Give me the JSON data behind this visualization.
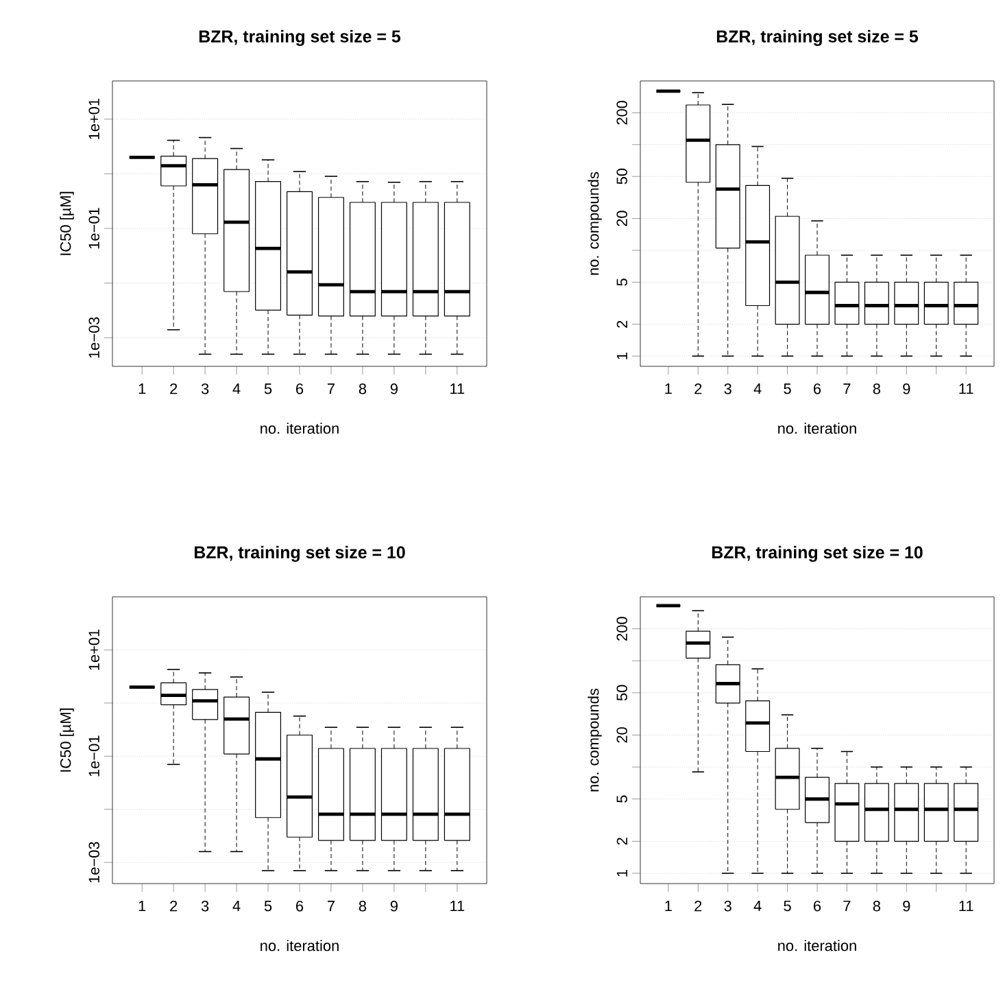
{
  "chart_data": [
    {
      "type": "box",
      "title": "BZR, training set size = 5",
      "xlabel": "no. iteration",
      "ylabel": "IC50 [µM]",
      "log": true,
      "grid": "y",
      "categories": [
        "1",
        "2",
        "3",
        "4",
        "5",
        "6",
        "7",
        "8",
        "9",
        null,
        "11"
      ],
      "ylim": [
        0.0003,
        50
      ],
      "yticks": [
        {
          "value": 0.001,
          "label": "1e−03"
        },
        {
          "value": 0.01,
          "label": null
        },
        {
          "value": 0.1,
          "label": "1e−01"
        },
        {
          "value": 1,
          "label": null
        },
        {
          "value": 10,
          "label": "1e+01"
        }
      ],
      "boxes": [
        {
          "low": 2,
          "q1": 2,
          "median": 2,
          "q3": 2,
          "high": 2
        },
        {
          "low": 0.0014,
          "q1": 0.6,
          "median": 1.4,
          "q3": 2.1,
          "high": 4.1
        },
        {
          "low": 0.0005,
          "q1": 0.08,
          "median": 0.63,
          "q3": 1.9,
          "high": 4.6
        },
        {
          "low": 0.0005,
          "q1": 0.007,
          "median": 0.13,
          "q3": 1.2,
          "high": 2.9
        },
        {
          "low": 0.0005,
          "q1": 0.0032,
          "median": 0.043,
          "q3": 0.72,
          "high": 1.8
        },
        {
          "low": 0.0005,
          "q1": 0.0026,
          "median": 0.016,
          "q3": 0.47,
          "high": 1.1
        },
        {
          "low": 0.0005,
          "q1": 0.0025,
          "median": 0.0093,
          "q3": 0.37,
          "high": 0.9
        },
        {
          "low": 0.0005,
          "q1": 0.0025,
          "median": 0.007,
          "q3": 0.3,
          "high": 0.72
        },
        {
          "low": 0.0005,
          "q1": 0.0025,
          "median": 0.007,
          "q3": 0.3,
          "high": 0.7
        },
        {
          "low": 0.0005,
          "q1": 0.0025,
          "median": 0.007,
          "q3": 0.3,
          "high": 0.72
        },
        {
          "low": 0.0005,
          "q1": 0.0025,
          "median": 0.007,
          "q3": 0.3,
          "high": 0.72
        }
      ]
    },
    {
      "type": "box",
      "title": "BZR, training set size = 5",
      "xlabel": "no. iteration",
      "ylabel": "no. compounds",
      "log": true,
      "grid": "y",
      "categories": [
        "1",
        "2",
        "3",
        "4",
        "5",
        "6",
        "7",
        "8",
        "9",
        null,
        "11"
      ],
      "ylim": [
        0.8,
        400
      ],
      "yticks": [
        1,
        2,
        5,
        {
          "value": 10,
          "label": null
        },
        20,
        50,
        {
          "value": 100,
          "label": null
        },
        200
      ],
      "boxes": [
        {
          "low": 320,
          "q1": 320,
          "median": 320,
          "q3": 320,
          "high": 320
        },
        {
          "low": 1,
          "q1": 44,
          "median": 110,
          "q3": 237,
          "high": 310
        },
        {
          "low": 1,
          "q1": 10.5,
          "median": 38,
          "q3": 100,
          "high": 240
        },
        {
          "low": 1,
          "q1": 3,
          "median": 12,
          "q3": 41,
          "high": 96
        },
        {
          "low": 1,
          "q1": 2,
          "median": 5,
          "q3": 21,
          "high": 48
        },
        {
          "low": 1,
          "q1": 2,
          "median": 4,
          "q3": 9,
          "high": 19
        },
        {
          "low": 1,
          "q1": 2,
          "median": 3,
          "q3": 5,
          "high": 9
        },
        {
          "low": 1,
          "q1": 2,
          "median": 3,
          "q3": 5,
          "high": 9
        },
        {
          "low": 1,
          "q1": 2,
          "median": 3,
          "q3": 5,
          "high": 9
        },
        {
          "low": 1,
          "q1": 2,
          "median": 3,
          "q3": 5,
          "high": 9
        },
        {
          "low": 1,
          "q1": 2,
          "median": 3,
          "q3": 5,
          "high": 9
        }
      ]
    },
    {
      "type": "box",
      "title": "BZR, training set size = 10",
      "xlabel": "no. iteration",
      "ylabel": "IC50 [µM]",
      "log": true,
      "grid": "y",
      "categories": [
        "1",
        "2",
        "3",
        "4",
        "5",
        "6",
        "7",
        "8",
        "9",
        null,
        "11"
      ],
      "ylim": [
        0.0004,
        100
      ],
      "yticks": [
        {
          "value": 0.001,
          "label": "1e−03"
        },
        {
          "value": 0.01,
          "label": null
        },
        {
          "value": 0.1,
          "label": "1e−01"
        },
        {
          "value": 1,
          "label": null
        },
        {
          "value": 10,
          "label": "1e+01"
        }
      ],
      "boxes": [
        {
          "low": 2,
          "q1": 2,
          "median": 2,
          "q3": 2,
          "high": 2
        },
        {
          "low": 0.07,
          "q1": 0.93,
          "median": 1.4,
          "q3": 2.4,
          "high": 4.3
        },
        {
          "low": 0.0016,
          "q1": 0.49,
          "median": 1.1,
          "q3": 1.8,
          "high": 3.7
        },
        {
          "low": 0.0016,
          "q1": 0.11,
          "median": 0.5,
          "q3": 1.3,
          "high": 3.1
        },
        {
          "low": 0.0007,
          "q1": 0.007,
          "median": 0.089,
          "q3": 0.67,
          "high": 1.6
        },
        {
          "low": 0.0007,
          "q1": 0.003,
          "median": 0.017,
          "q3": 0.25,
          "high": 0.57
        },
        {
          "low": 0.0007,
          "q1": 0.0026,
          "median": 0.0081,
          "q3": 0.14,
          "high": 0.35
        },
        {
          "low": 0.0007,
          "q1": 0.0026,
          "median": 0.0081,
          "q3": 0.14,
          "high": 0.35
        },
        {
          "low": 0.0007,
          "q1": 0.0026,
          "median": 0.0081,
          "q3": 0.14,
          "high": 0.35
        },
        {
          "low": 0.0007,
          "q1": 0.0026,
          "median": 0.0081,
          "q3": 0.14,
          "high": 0.35
        },
        {
          "low": 0.0007,
          "q1": 0.0026,
          "median": 0.0081,
          "q3": 0.14,
          "high": 0.35
        }
      ]
    },
    {
      "type": "box",
      "title": "BZR, training set size = 10",
      "xlabel": "no. iteration",
      "ylabel": "no. compounds",
      "log": true,
      "grid": "y",
      "categories": [
        "1",
        "2",
        "3",
        "4",
        "5",
        "6",
        "7",
        "8",
        "9",
        null,
        "11"
      ],
      "ylim": [
        0.8,
        400
      ],
      "yticks": [
        1,
        2,
        5,
        {
          "value": 10,
          "label": null
        },
        20,
        50,
        {
          "value": 100,
          "label": null
        },
        200
      ],
      "boxes": [
        {
          "low": 330,
          "q1": 330,
          "median": 330,
          "q3": 330,
          "high": 330
        },
        {
          "low": 9,
          "q1": 106,
          "median": 147,
          "q3": 190,
          "high": 296
        },
        {
          "low": 1,
          "q1": 40,
          "median": 61,
          "q3": 92,
          "high": 167
        },
        {
          "low": 1,
          "q1": 14,
          "median": 26,
          "q3": 42,
          "high": 84
        },
        {
          "low": 1,
          "q1": 4,
          "median": 8,
          "q3": 15,
          "high": 31
        },
        {
          "low": 1,
          "q1": 3,
          "median": 5,
          "q3": 8,
          "high": 15
        },
        {
          "low": 1,
          "q1": 2,
          "median": 4.5,
          "q3": 7,
          "high": 14
        },
        {
          "low": 1,
          "q1": 2,
          "median": 4,
          "q3": 7,
          "high": 10
        },
        {
          "low": 1,
          "q1": 2,
          "median": 4,
          "q3": 7,
          "high": 10
        },
        {
          "low": 1,
          "q1": 2,
          "median": 4,
          "q3": 7,
          "high": 10
        },
        {
          "low": 1,
          "q1": 2,
          "median": 4,
          "q3": 7,
          "high": 10
        }
      ]
    }
  ]
}
